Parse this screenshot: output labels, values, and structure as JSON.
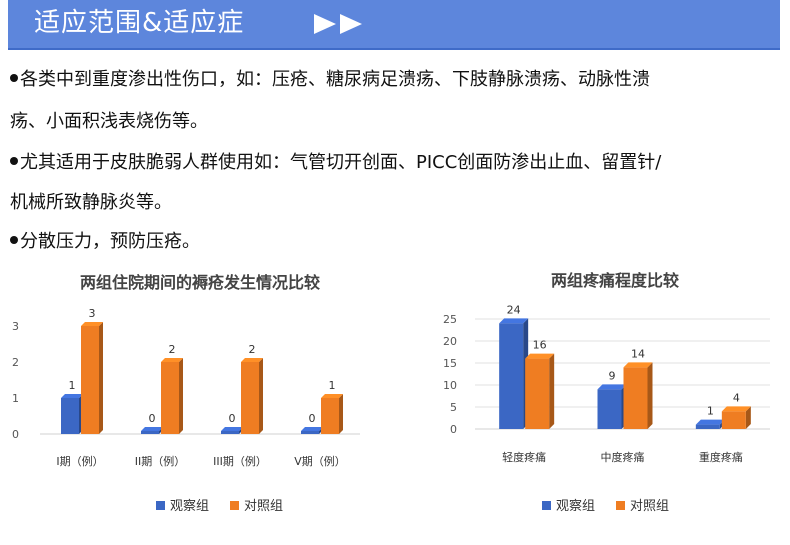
{
  "header": {
    "title": "适应范围&适应症",
    "accent_color": "#5d86dc"
  },
  "content": {
    "lines": [
      {
        "bullet": true,
        "text": "各类中到重度渗出性伤口，如：压疮、糖尿病足溃疡、下肢静脉溃疡、动脉性溃"
      },
      {
        "bullet": false,
        "text": "疡、小面积浅表烧伤等。"
      },
      {
        "bullet": true,
        "text": "尤其适用于皮肤脆弱人群使用如：气管切开创面、PICC创面防渗出止血、留置针/"
      },
      {
        "bullet": false,
        "text": "机械所致静脉炎等。"
      },
      {
        "bullet": true,
        "text": "分散压力，预防压疮。"
      }
    ]
  },
  "chart_data": [
    {
      "type": "bar",
      "title": "两组住院期间的褥疮发生情况比较",
      "categories": [
        "I期（例）",
        "II期（例）",
        "III期（例）",
        "V期（例）"
      ],
      "series": [
        {
          "name": "观察组",
          "values": [
            1,
            0,
            0,
            0
          ],
          "color": "#3b67c4"
        },
        {
          "name": "对照组",
          "values": [
            3,
            2,
            2,
            1
          ],
          "color": "#ef7d22"
        }
      ],
      "yticks": [
        0,
        1,
        2,
        3
      ],
      "ylim": [
        0,
        3
      ],
      "data_labels": true,
      "grid": false,
      "legend": "bottom"
    },
    {
      "type": "bar",
      "title": "两组疼痛程度比较",
      "categories": [
        "轻度疼痛",
        "中度疼痛",
        "重度疼痛"
      ],
      "series": [
        {
          "name": "观察组",
          "values": [
            24,
            9,
            1
          ],
          "color": "#3b67c4"
        },
        {
          "name": "对照组",
          "values": [
            16,
            14,
            4
          ],
          "color": "#ef7d22"
        }
      ],
      "yticks": [
        0,
        5,
        10,
        15,
        20,
        25
      ],
      "ylim": [
        0,
        25
      ],
      "data_labels": true,
      "grid": true,
      "legend": "bottom"
    }
  ]
}
